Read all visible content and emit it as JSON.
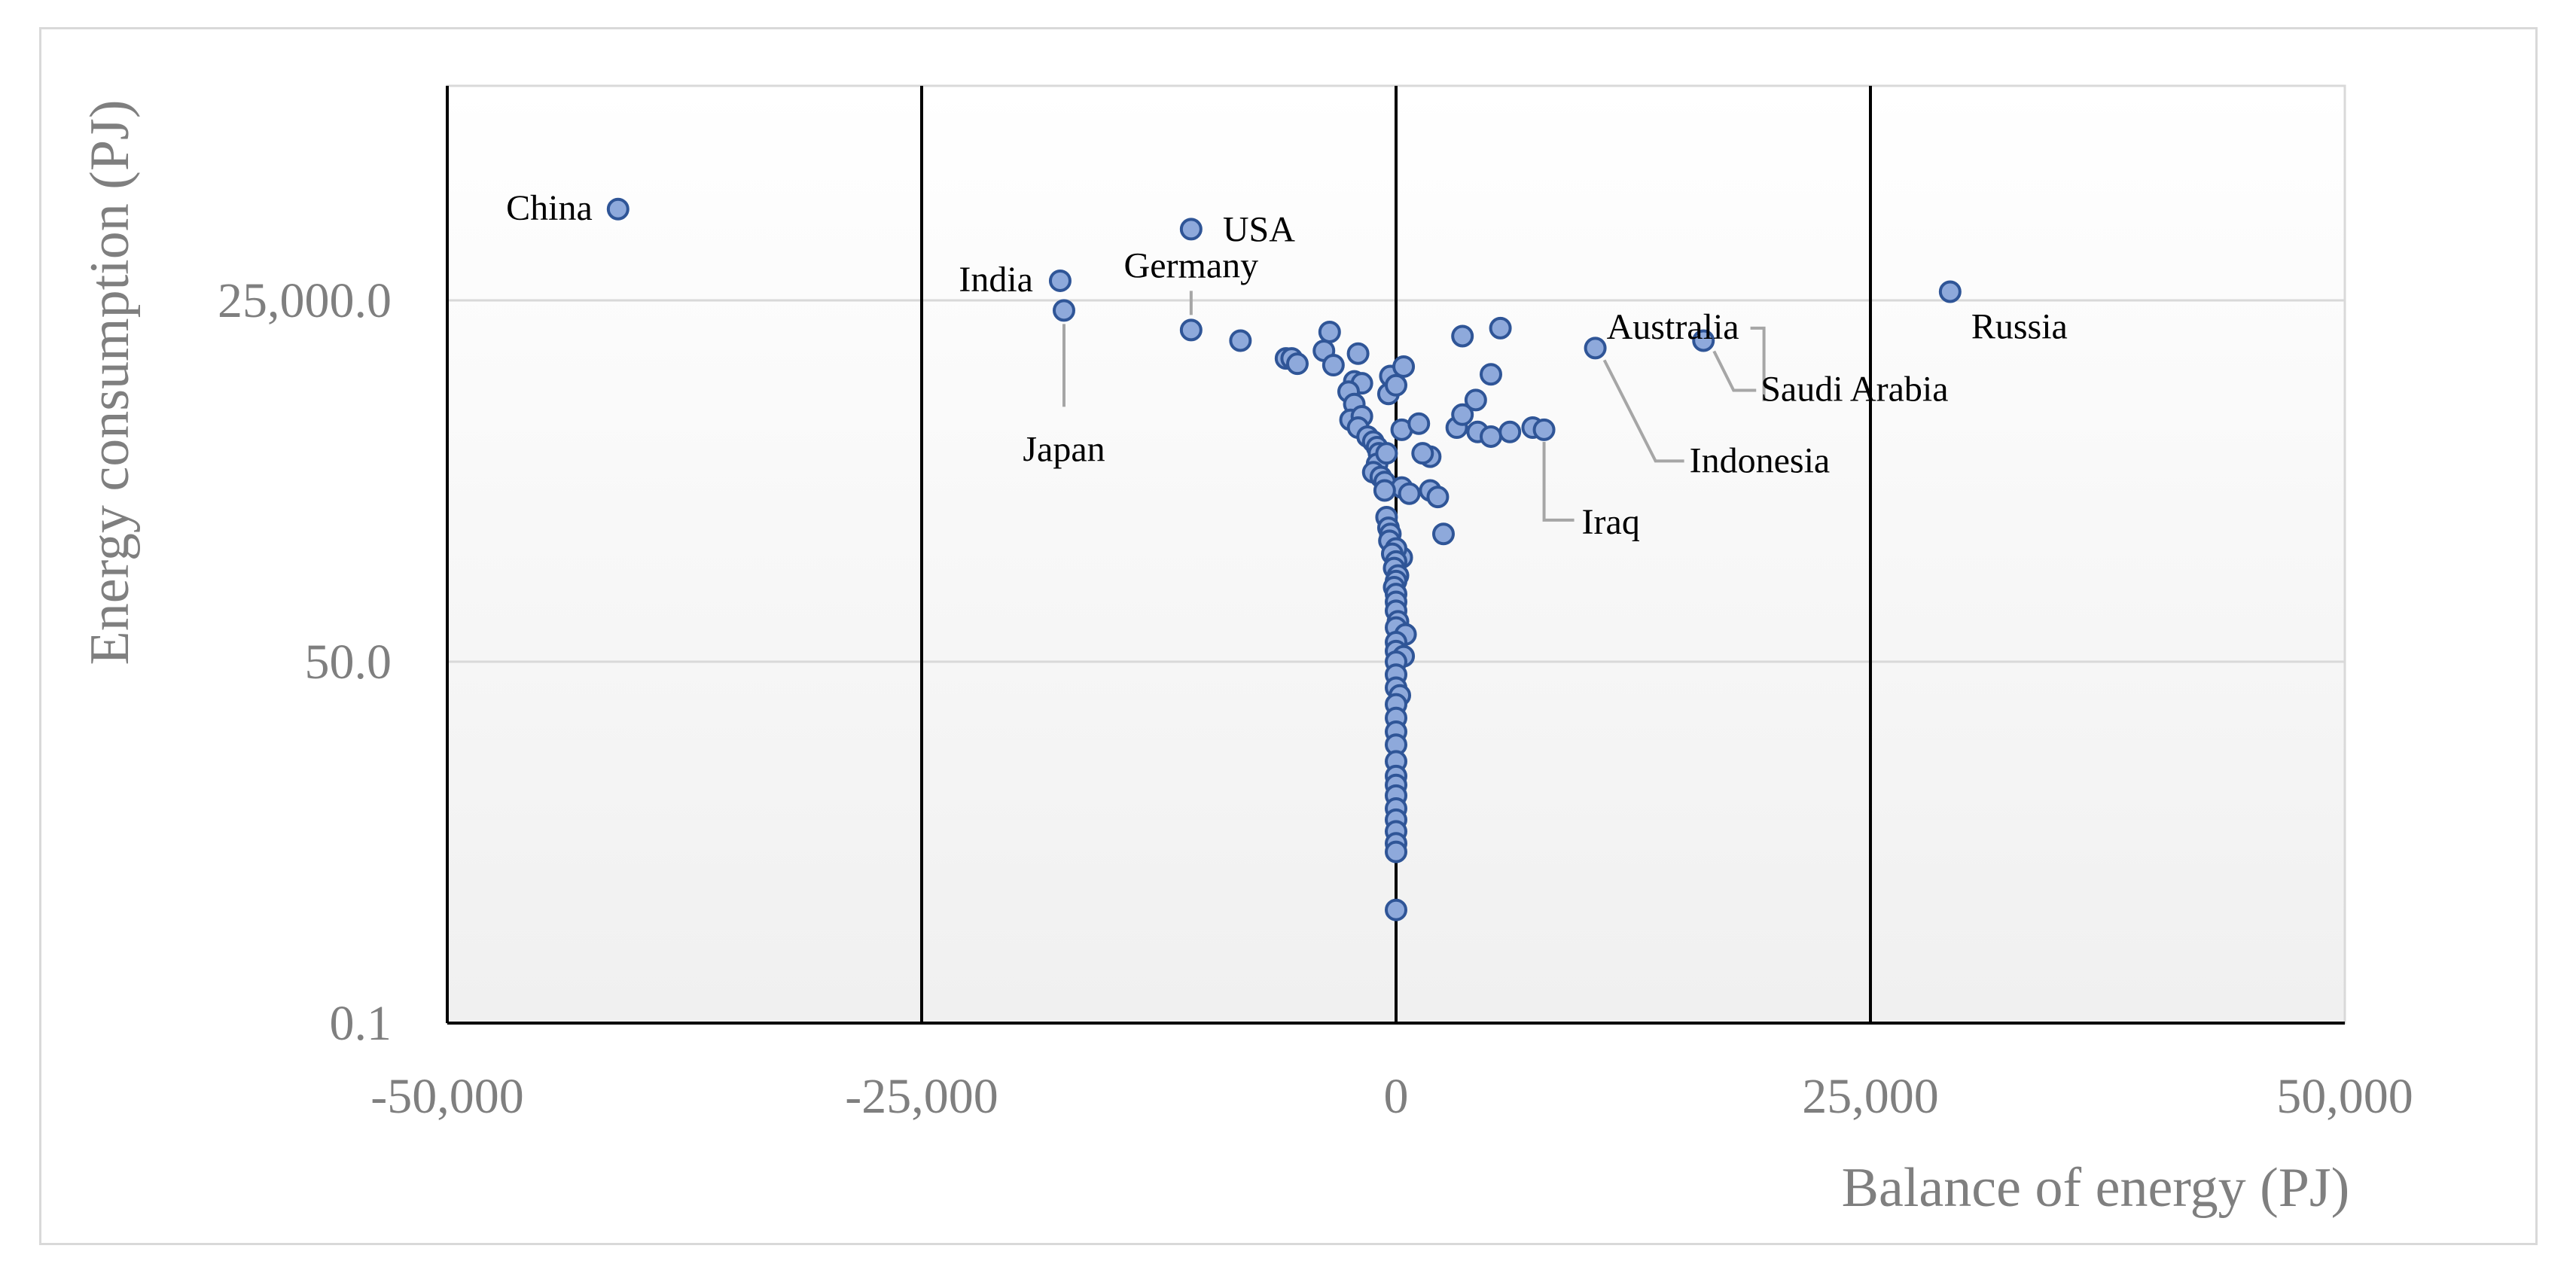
{
  "chart_data": {
    "type": "scatter",
    "xlabel": "Balance of energy  (PJ)",
    "ylabel": "Energy consumption (PJ)",
    "xlim": [
      -50000,
      50000
    ],
    "ylim": [
      0.1,
      1000000
    ],
    "yscale": "log",
    "x_ticks": [
      -50000,
      -25000,
      0,
      25000,
      50000
    ],
    "x_tick_labels": [
      "-50,000",
      "-25,000",
      "0",
      "25,000",
      "50,000"
    ],
    "y_ticks": [
      0.1,
      50,
      25000
    ],
    "y_tick_labels": [
      "0.1",
      "50.0",
      "25,000.0"
    ],
    "vertical_lines_at": [
      -25000,
      0,
      25000
    ],
    "horizontal_grid": true,
    "marker_fill": "#8ea9db",
    "marker_edge": "#2f5597",
    "labeled_points": [
      {
        "name": "China",
        "x": -41000,
        "y": 120000
      },
      {
        "name": "USA",
        "x": -10800,
        "y": 85000
      },
      {
        "name": "India",
        "x": -17700,
        "y": 35000
      },
      {
        "name": "Japan",
        "x": -17500,
        "y": 21000
      },
      {
        "name": "Germany",
        "x": -10800,
        "y": 15000
      },
      {
        "name": "Australia",
        "x": 5500,
        "y": 15500
      },
      {
        "name": "Russia",
        "x": 29200,
        "y": 29000
      },
      {
        "name": "Saudi Arabia",
        "x": 16200,
        "y": 12500
      },
      {
        "name": "Indonesia",
        "x": 10500,
        "y": 11000
      },
      {
        "name": "Iraq",
        "x": 7800,
        "y": 2700
      }
    ],
    "other_points": [
      [
        -8200,
        12500
      ],
      [
        -3500,
        14500
      ],
      [
        -3800,
        10500
      ],
      [
        -3300,
        8200
      ],
      [
        -5800,
        9200
      ],
      [
        -5500,
        9200
      ],
      [
        -5200,
        8400
      ],
      [
        -2000,
        10000
      ],
      [
        -2200,
        6200
      ],
      [
        -1800,
        6000
      ],
      [
        -2500,
        5200
      ],
      [
        -2200,
        4200
      ],
      [
        -2400,
        3200
      ],
      [
        -1800,
        3400
      ],
      [
        -2000,
        2800
      ],
      [
        -1500,
        2400
      ],
      [
        -1200,
        2200
      ],
      [
        -1000,
        2000
      ],
      [
        -900,
        1800
      ],
      [
        -1000,
        1500
      ],
      [
        -1200,
        1300
      ],
      [
        -800,
        1200
      ],
      [
        -600,
        1100
      ],
      [
        -500,
        1800
      ],
      [
        -400,
        5000
      ],
      [
        -300,
        6800
      ],
      [
        0,
        5800
      ],
      [
        400,
        8000
      ],
      [
        300,
        2700
      ],
      [
        1200,
        3000
      ],
      [
        1800,
        1700
      ],
      [
        1400,
        1800
      ],
      [
        3200,
        2800
      ],
      [
        3500,
        13500
      ],
      [
        4200,
        4500
      ],
      [
        5000,
        7000
      ],
      [
        3500,
        3500
      ],
      [
        4300,
        2600
      ],
      [
        5000,
        2400
      ],
      [
        6000,
        2600
      ],
      [
        7200,
        2800
      ],
      [
        300,
        1000
      ],
      [
        700,
        900
      ],
      [
        1800,
        950
      ],
      [
        2200,
        850
      ],
      [
        2500,
        450
      ],
      [
        300,
        300
      ],
      [
        -600,
        950
      ],
      [
        -500,
        600
      ],
      [
        -400,
        500
      ],
      [
        -300,
        450
      ],
      [
        -350,
        400
      ],
      [
        0,
        350
      ],
      [
        -200,
        320
      ],
      [
        0,
        280
      ],
      [
        -100,
        250
      ],
      [
        100,
        220
      ],
      [
        0,
        200
      ],
      [
        -100,
        180
      ],
      [
        0,
        160
      ],
      [
        0,
        140
      ],
      [
        0,
        120
      ],
      [
        100,
        100
      ],
      [
        0,
        90
      ],
      [
        500,
        80
      ],
      [
        0,
        70
      ],
      [
        0,
        60
      ],
      [
        400,
        55
      ],
      [
        0,
        50
      ],
      [
        0,
        40
      ],
      [
        0,
        32
      ],
      [
        200,
        28
      ],
      [
        0,
        24
      ],
      [
        0,
        19
      ],
      [
        0,
        15
      ],
      [
        0,
        12
      ],
      [
        0,
        9
      ],
      [
        0,
        7
      ],
      [
        0,
        6
      ],
      [
        0,
        5
      ],
      [
        0,
        4
      ],
      [
        0,
        3.3
      ],
      [
        0,
        2.7
      ],
      [
        0,
        2.2
      ],
      [
        0,
        1.9
      ],
      [
        0,
        0.7
      ]
    ]
  }
}
